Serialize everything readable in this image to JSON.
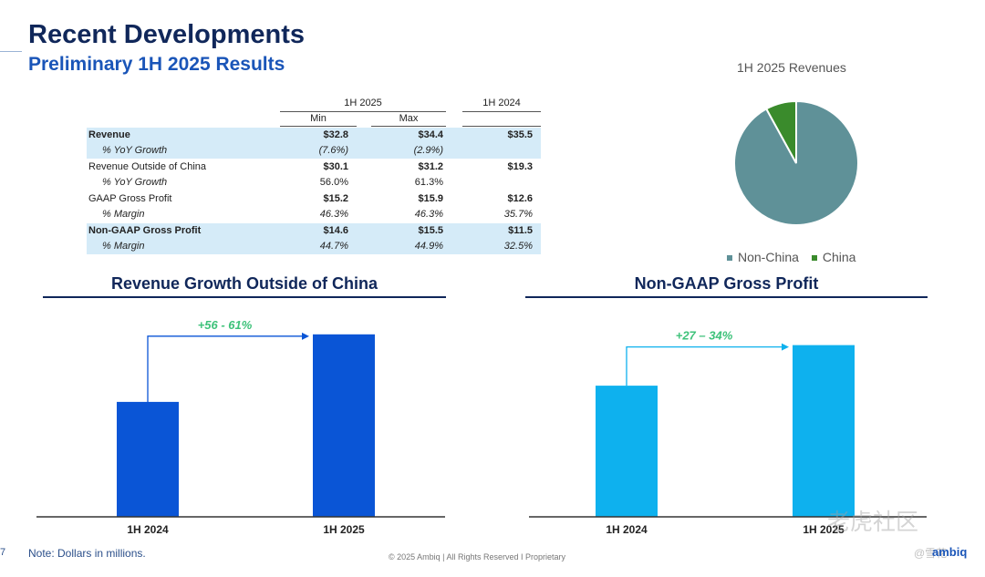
{
  "slide": {
    "title": "Recent Developments",
    "subtitle": "Preliminary 1H 2025 Results",
    "note": "Note: Dollars in millions.",
    "page_number": "7",
    "footer": "© 2025 Ambiq  |  All Rights Reserved I Proprietary",
    "logo": "ambiq",
    "watermark": "老虎社区",
    "watermark_handle": "@雪花"
  },
  "colors": {
    "title": "#10275a",
    "subtitle": "#1a55b8",
    "table_shade": "#d5ebf8",
    "bar_dark_blue": "#0a55d6",
    "bar_light_blue": "#0eb1ee",
    "growth_text": "#3ec27a",
    "pie_non_china": "#5f9198",
    "pie_china": "#3a8b2c"
  },
  "table": {
    "group_header_1": "1H 2025",
    "group_header_2": "1H 2024",
    "col_min": "Min",
    "col_max": "Max",
    "rows": [
      {
        "label": "Revenue",
        "min": "$32.8",
        "max": "$34.4",
        "prior": "$35.5"
      },
      {
        "label": "% YoY Growth",
        "min": "(7.6%)",
        "max": "(2.9%)",
        "prior": ""
      },
      {
        "label": "Revenue Outside of China",
        "min": "$30.1",
        "max": "$31.2",
        "prior": "$19.3"
      },
      {
        "label": "% YoY Growth",
        "min": "56.0%",
        "max": "61.3%",
        "prior": ""
      },
      {
        "label": "GAAP Gross Profit",
        "min": "$15.2",
        "max": "$15.9",
        "prior": "$12.6"
      },
      {
        "label": "% Margin",
        "min": "46.3%",
        "max": "46.3%",
        "prior": "35.7%"
      },
      {
        "label": "Non-GAAP Gross Profit",
        "min": "$14.6",
        "max": "$15.5",
        "prior": "$11.5"
      },
      {
        "label": "% Margin",
        "min": "44.7%",
        "max": "44.9%",
        "prior": "32.5%"
      }
    ]
  },
  "chart_data": [
    {
      "type": "pie",
      "title": "1H 2025 Revenues",
      "categories": [
        "Non-China",
        "China"
      ],
      "values": [
        92,
        8
      ],
      "legend": "bottom",
      "colors": [
        "#5f9198",
        "#3a8b2c"
      ]
    },
    {
      "type": "bar",
      "title": "Revenue Growth Outside of China",
      "categories": [
        "1H 2024",
        "1H 2025"
      ],
      "values": [
        19.3,
        30.65
      ],
      "ylim": [
        0,
        32
      ],
      "annotation": "+56 - 61%",
      "color": "#0a55d6",
      "grid": false
    },
    {
      "type": "bar",
      "title": "Non-GAAP Gross Profit",
      "categories": [
        "1H 2024",
        "1H 2025"
      ],
      "values": [
        11.5,
        15.05
      ],
      "ylim": [
        0,
        16.7
      ],
      "annotation": "+27 – 34%",
      "color": "#0eb1ee",
      "grid": false
    }
  ]
}
